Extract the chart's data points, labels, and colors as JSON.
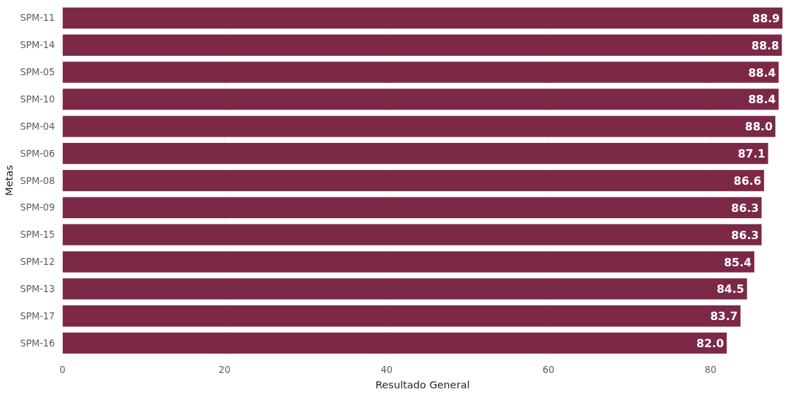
{
  "chart_data": {
    "type": "bar",
    "orientation": "horizontal",
    "xlabel": "Resultado General",
    "ylabel": "Metas",
    "categories": [
      "SPM-11",
      "SPM-14",
      "SPM-05",
      "SPM-10",
      "SPM-04",
      "SPM-06",
      "SPM-08",
      "SPM-09",
      "SPM-15",
      "SPM-12",
      "SPM-13",
      "SPM-17",
      "SPM-16"
    ],
    "values": [
      88.9,
      88.8,
      88.4,
      88.4,
      88.0,
      87.1,
      86.6,
      86.3,
      86.3,
      85.4,
      84.5,
      83.7,
      82.0
    ],
    "value_labels": [
      "88.9",
      "88.8",
      "88.4",
      "88.4",
      "88.0",
      "87.1",
      "86.6",
      "86.3",
      "86.3",
      "85.4",
      "84.5",
      "83.7",
      "82.0"
    ],
    "color": "#7b2946",
    "xlim": [
      0,
      88.9
    ],
    "xticks": [
      0,
      20,
      40,
      60,
      80
    ],
    "grid": "x"
  }
}
